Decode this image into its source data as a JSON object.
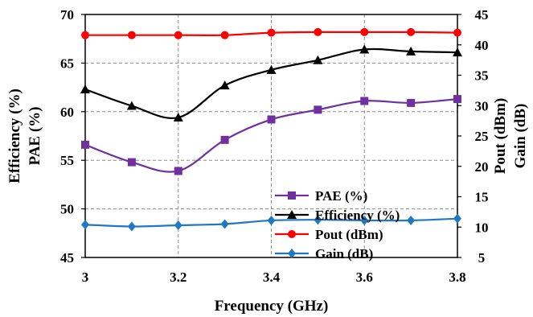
{
  "chart_data": {
    "type": "line",
    "title": "",
    "xlabel": "Frequency (GHz)",
    "ylabel_left": [
      "Efficiency (%)",
      "PAE (%)"
    ],
    "ylabel_right": [
      "Pout (dBm)",
      "Gain (dB)"
    ],
    "xlim": [
      3,
      3.8
    ],
    "ylim_left": [
      45,
      70
    ],
    "ylim_right": [
      5,
      45
    ],
    "x_ticks": [
      "3",
      "3.2",
      "3.4",
      "3.6",
      "3.8"
    ],
    "y_left_ticks": [
      "45",
      "50",
      "55",
      "60",
      "65",
      "70"
    ],
    "y_right_ticks": [
      "5",
      "10",
      "15",
      "20",
      "25",
      "30",
      "35",
      "40",
      "45"
    ],
    "grid": true,
    "legend_position": "center-right",
    "x": [
      3.0,
      3.1,
      3.2,
      3.3,
      3.4,
      3.5,
      3.6,
      3.7,
      3.8
    ],
    "series": [
      {
        "name": "PAE (%)",
        "axis": "left",
        "color": "#7030A0",
        "marker": "square",
        "values": [
          56.6,
          54.8,
          53.9,
          57.1,
          59.2,
          60.2,
          61.1,
          60.9,
          61.3
        ]
      },
      {
        "name": "Efficiency (%)",
        "axis": "left",
        "color": "#000000",
        "marker": "triangle",
        "values": [
          62.3,
          60.6,
          59.4,
          62.7,
          64.3,
          65.3,
          66.4,
          66.2,
          66.1
        ]
      },
      {
        "name": "Pout (dBm)",
        "axis": "right",
        "color": "#FF0000",
        "marker": "circle",
        "values": [
          41.6,
          41.6,
          41.6,
          41.6,
          42.0,
          42.1,
          42.1,
          42.1,
          42.0
        ]
      },
      {
        "name": "Gain (dB)",
        "axis": "right",
        "color": "#1F78C1",
        "marker": "diamond",
        "values": [
          10.4,
          10.1,
          10.3,
          10.5,
          11.1,
          11.2,
          11.1,
          11.1,
          11.4
        ]
      }
    ]
  }
}
